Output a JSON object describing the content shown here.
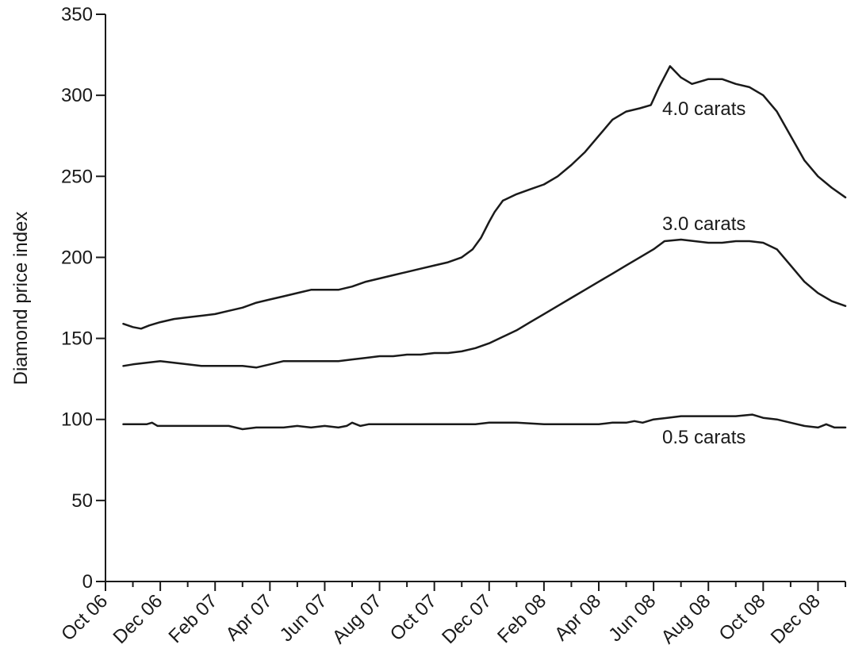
{
  "chart_data": {
    "type": "line",
    "ylabel": "Diamond price index",
    "xlabel": "",
    "ylim": [
      0,
      350
    ],
    "yticks": [
      0,
      50,
      100,
      150,
      200,
      250,
      300,
      350
    ],
    "xlim": [
      0,
      27
    ],
    "xticks": [
      {
        "x": 0,
        "label": "Oct 06"
      },
      {
        "x": 2,
        "label": "Dec 06"
      },
      {
        "x": 4,
        "label": "Feb 07"
      },
      {
        "x": 6,
        "label": "Apr 07"
      },
      {
        "x": 8,
        "label": "Jun 07"
      },
      {
        "x": 10,
        "label": "Aug 07"
      },
      {
        "x": 12,
        "label": "Oct 07"
      },
      {
        "x": 14,
        "label": "Dec 07"
      },
      {
        "x": 16,
        "label": "Feb 08"
      },
      {
        "x": 18,
        "label": "Apr 08"
      },
      {
        "x": 20,
        "label": "Jun 08"
      },
      {
        "x": 22,
        "label": "Aug 08"
      },
      {
        "x": 24,
        "label": "Oct 08"
      },
      {
        "x": 26,
        "label": "Dec 08"
      }
    ],
    "minor_xticks": [
      1,
      3,
      5,
      7,
      9,
      11,
      13,
      15,
      17,
      19,
      21,
      23,
      25,
      27
    ],
    "grid": false,
    "series": [
      {
        "name": "4.0 carats",
        "points": [
          [
            0.65,
            159
          ],
          [
            1.0,
            157
          ],
          [
            1.3,
            156
          ],
          [
            1.6,
            158
          ],
          [
            2.0,
            160
          ],
          [
            2.5,
            162
          ],
          [
            3.0,
            163
          ],
          [
            3.5,
            164
          ],
          [
            4.0,
            165
          ],
          [
            4.5,
            167
          ],
          [
            5.0,
            169
          ],
          [
            5.5,
            172
          ],
          [
            6.0,
            174
          ],
          [
            6.5,
            176
          ],
          [
            7.0,
            178
          ],
          [
            7.5,
            180
          ],
          [
            8.0,
            180
          ],
          [
            8.5,
            180
          ],
          [
            9.0,
            182
          ],
          [
            9.5,
            185
          ],
          [
            10.0,
            187
          ],
          [
            10.5,
            189
          ],
          [
            11.0,
            191
          ],
          [
            11.5,
            193
          ],
          [
            12.0,
            195
          ],
          [
            12.5,
            197
          ],
          [
            13.0,
            200
          ],
          [
            13.4,
            205
          ],
          [
            13.7,
            212
          ],
          [
            14.0,
            222
          ],
          [
            14.2,
            228
          ],
          [
            14.5,
            235
          ],
          [
            15.0,
            239
          ],
          [
            15.5,
            242
          ],
          [
            16.0,
            245
          ],
          [
            16.5,
            250
          ],
          [
            17.0,
            257
          ],
          [
            17.5,
            265
          ],
          [
            18.0,
            275
          ],
          [
            18.5,
            285
          ],
          [
            19.0,
            290
          ],
          [
            19.5,
            292
          ],
          [
            19.9,
            294
          ],
          [
            20.2,
            305
          ],
          [
            20.6,
            318
          ],
          [
            21.0,
            311
          ],
          [
            21.4,
            307
          ],
          [
            22.0,
            310
          ],
          [
            22.5,
            310
          ],
          [
            23.0,
            307
          ],
          [
            23.5,
            305
          ],
          [
            24.0,
            300
          ],
          [
            24.5,
            290
          ],
          [
            25.0,
            275
          ],
          [
            25.5,
            260
          ],
          [
            26.0,
            250
          ],
          [
            26.5,
            243
          ],
          [
            27.0,
            237
          ]
        ]
      },
      {
        "name": "3.0 carats",
        "points": [
          [
            0.65,
            133
          ],
          [
            1.0,
            134
          ],
          [
            1.5,
            135
          ],
          [
            2.0,
            136
          ],
          [
            2.5,
            135
          ],
          [
            3.0,
            134
          ],
          [
            3.5,
            133
          ],
          [
            4.0,
            133
          ],
          [
            4.5,
            133
          ],
          [
            5.0,
            133
          ],
          [
            5.5,
            132
          ],
          [
            6.0,
            134
          ],
          [
            6.5,
            136
          ],
          [
            7.0,
            136
          ],
          [
            7.5,
            136
          ],
          [
            8.0,
            136
          ],
          [
            8.5,
            136
          ],
          [
            9.0,
            137
          ],
          [
            9.5,
            138
          ],
          [
            10.0,
            139
          ],
          [
            10.5,
            139
          ],
          [
            11.0,
            140
          ],
          [
            11.5,
            140
          ],
          [
            12.0,
            141
          ],
          [
            12.5,
            141
          ],
          [
            13.0,
            142
          ],
          [
            13.5,
            144
          ],
          [
            14.0,
            147
          ],
          [
            14.5,
            151
          ],
          [
            15.0,
            155
          ],
          [
            15.5,
            160
          ],
          [
            16.0,
            165
          ],
          [
            16.5,
            170
          ],
          [
            17.0,
            175
          ],
          [
            17.5,
            180
          ],
          [
            18.0,
            185
          ],
          [
            18.5,
            190
          ],
          [
            19.0,
            195
          ],
          [
            19.5,
            200
          ],
          [
            20.0,
            205
          ],
          [
            20.4,
            210
          ],
          [
            21.0,
            211
          ],
          [
            21.5,
            210
          ],
          [
            22.0,
            209
          ],
          [
            22.5,
            209
          ],
          [
            23.0,
            210
          ],
          [
            23.5,
            210
          ],
          [
            24.0,
            209
          ],
          [
            24.5,
            205
          ],
          [
            25.0,
            195
          ],
          [
            25.5,
            185
          ],
          [
            26.0,
            178
          ],
          [
            26.5,
            173
          ],
          [
            27.0,
            170
          ]
        ]
      },
      {
        "name": "0.5 carats",
        "points": [
          [
            0.65,
            97
          ],
          [
            1.0,
            97
          ],
          [
            1.5,
            97
          ],
          [
            1.7,
            98
          ],
          [
            1.9,
            96
          ],
          [
            2.5,
            96
          ],
          [
            3.0,
            96
          ],
          [
            3.5,
            96
          ],
          [
            4.0,
            96
          ],
          [
            4.5,
            96
          ],
          [
            5.0,
            94
          ],
          [
            5.5,
            95
          ],
          [
            6.0,
            95
          ],
          [
            6.5,
            95
          ],
          [
            7.0,
            96
          ],
          [
            7.5,
            95
          ],
          [
            8.0,
            96
          ],
          [
            8.5,
            95
          ],
          [
            8.8,
            96
          ],
          [
            9.0,
            98
          ],
          [
            9.3,
            96
          ],
          [
            9.6,
            97
          ],
          [
            10.0,
            97
          ],
          [
            10.5,
            97
          ],
          [
            11.0,
            97
          ],
          [
            11.5,
            97
          ],
          [
            12.0,
            97
          ],
          [
            12.5,
            97
          ],
          [
            13.0,
            97
          ],
          [
            13.5,
            97
          ],
          [
            14.0,
            98
          ],
          [
            14.5,
            98
          ],
          [
            15.0,
            98
          ],
          [
            16.0,
            97
          ],
          [
            17.0,
            97
          ],
          [
            18.0,
            97
          ],
          [
            18.5,
            98
          ],
          [
            19.0,
            98
          ],
          [
            19.3,
            99
          ],
          [
            19.6,
            98
          ],
          [
            20.0,
            100
          ],
          [
            20.5,
            101
          ],
          [
            21.0,
            102
          ],
          [
            21.5,
            102
          ],
          [
            22.0,
            102
          ],
          [
            23.0,
            102
          ],
          [
            23.6,
            103
          ],
          [
            24.0,
            101
          ],
          [
            24.5,
            100
          ],
          [
            25.0,
            98
          ],
          [
            25.5,
            96
          ],
          [
            26.0,
            95
          ],
          [
            26.3,
            97
          ],
          [
            26.6,
            95
          ],
          [
            27.0,
            95
          ]
        ]
      }
    ]
  }
}
